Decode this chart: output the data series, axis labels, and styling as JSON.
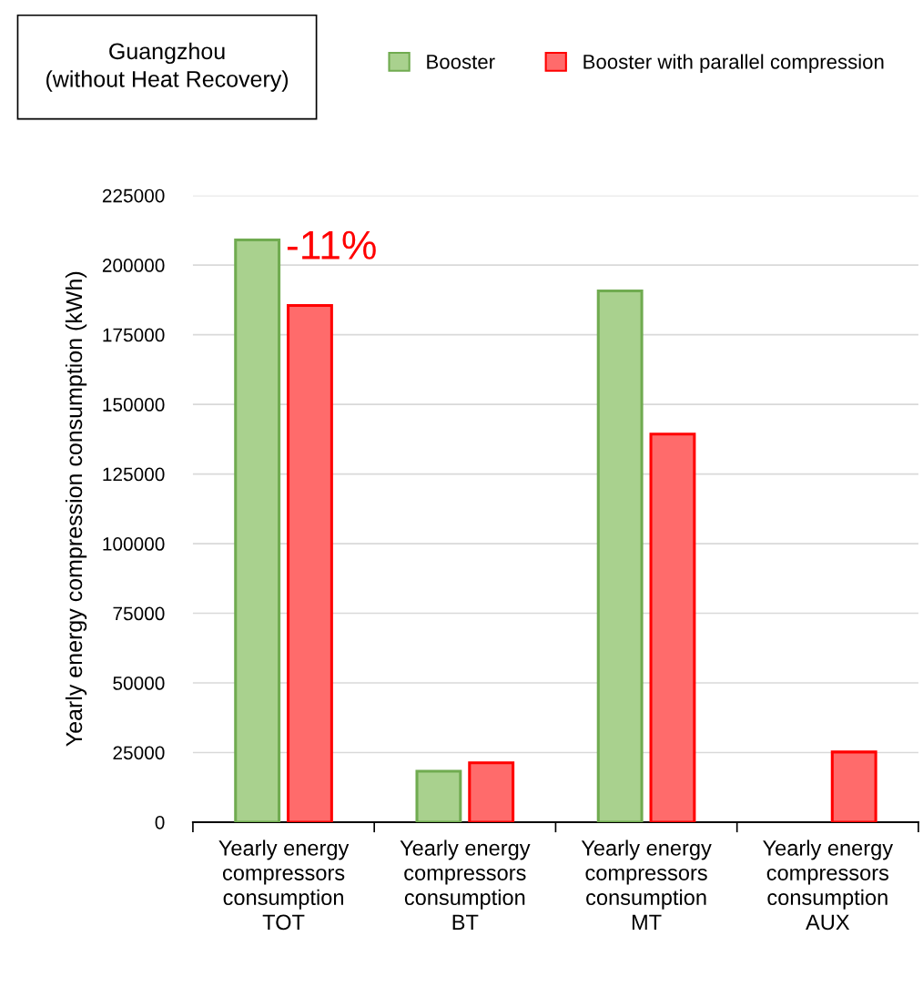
{
  "chart_data": {
    "type": "bar",
    "title": "Guangzhou\n(without Heat Recovery)",
    "ylabel": "Yearly energy compression consumption (kWh)",
    "categories": [
      "Yearly energy\ncompressors\nconsumption\nTOT",
      "Yearly energy\ncompressors\nconsumption\nBT",
      "Yearly energy\ncompressors\nconsumption\nMT",
      "Yearly energy\ncompressors\nconsumption\nAUX"
    ],
    "series": [
      {
        "name": "Booster",
        "color": "#a9d18e",
        "values": [
          209000,
          18300,
          190700,
          0
        ]
      },
      {
        "name": "Booster with parallel compression",
        "color": "#ff6b6b",
        "values": [
          185500,
          21300,
          139300,
          25200
        ]
      }
    ],
    "annotations": [
      "-11%"
    ],
    "ylim": [
      0,
      225000
    ],
    "yticks": [
      0,
      25000,
      50000,
      75000,
      100000,
      125000,
      150000,
      175000,
      200000,
      225000
    ],
    "grid": "y",
    "legend": "top"
  }
}
